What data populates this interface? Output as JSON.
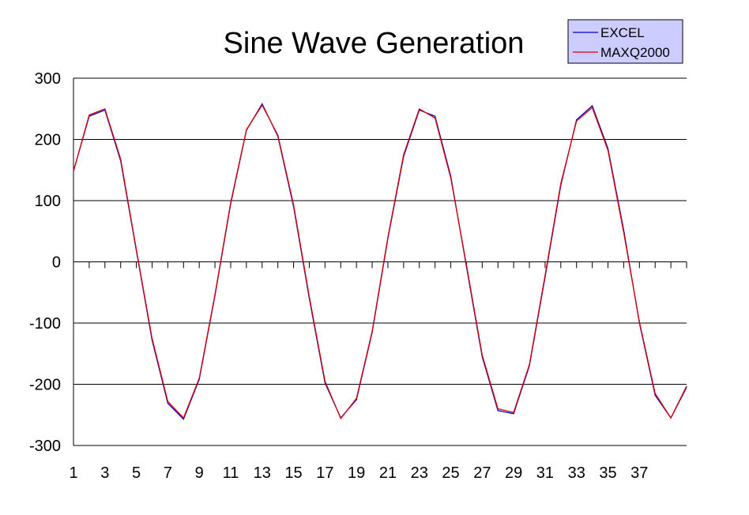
{
  "chart_data": {
    "type": "line",
    "title": "Sine Wave Generation",
    "xlabel": "",
    "ylabel": "",
    "x": [
      1,
      2,
      3,
      4,
      5,
      6,
      7,
      8,
      9,
      10,
      11,
      12,
      13,
      14,
      15,
      16,
      17,
      18,
      19,
      20,
      21,
      22,
      23,
      24,
      25,
      26,
      27,
      28,
      29,
      30,
      31,
      32,
      33,
      34,
      35,
      36,
      37,
      38,
      39,
      40
    ],
    "x_tick_labels": [
      "1",
      "3",
      "5",
      "7",
      "9",
      "11",
      "13",
      "15",
      "17",
      "19",
      "21",
      "23",
      "25",
      "27",
      "29",
      "31",
      "33",
      "35",
      "37"
    ],
    "ylim": [
      -300,
      300
    ],
    "y_ticks": [
      300,
      200,
      100,
      0,
      -100,
      -200,
      -300
    ],
    "grid": true,
    "legend_position": "top-right",
    "series": [
      {
        "name": "EXCEL",
        "color": "#0000cc",
        "values": [
          148,
          238,
          248,
          165,
          18,
          -128,
          -231,
          -257,
          -192,
          -55,
          95,
          215,
          258,
          205,
          90,
          -60,
          -198,
          -255,
          -225,
          -115,
          38,
          172,
          248,
          238,
          140,
          -8,
          -155,
          -243,
          -248,
          -170,
          -25,
          125,
          232,
          255,
          185,
          52,
          -100,
          -218,
          -255,
          -205
        ]
      },
      {
        "name": "MAXQ2000",
        "color": "#dd0000",
        "values": [
          148,
          240,
          250,
          168,
          20,
          -125,
          -228,
          -255,
          -190,
          -53,
          97,
          216,
          256,
          207,
          93,
          -57,
          -195,
          -256,
          -223,
          -113,
          40,
          175,
          250,
          235,
          137,
          -5,
          -152,
          -240,
          -246,
          -168,
          -22,
          128,
          230,
          252,
          182,
          48,
          -98,
          -215,
          -255,
          -203
        ]
      }
    ]
  }
}
